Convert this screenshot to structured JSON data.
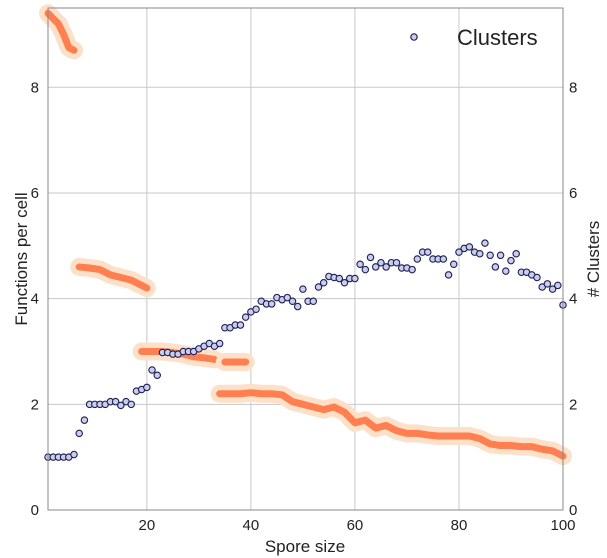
{
  "chart_data": {
    "type": "scatter",
    "xlabel": "Spore size",
    "ylabel_left": "Functions per cell",
    "ylabel_right": "# Clusters",
    "xlim": [
      1,
      100
    ],
    "ylim": [
      0,
      9.5
    ],
    "xticks": [
      20,
      40,
      60,
      80,
      100
    ],
    "yticks": [
      0,
      2,
      4,
      6,
      8
    ],
    "grid": true,
    "legend": {
      "position": "top-right",
      "label": "Clusters"
    },
    "colors": {
      "band_outer": "#fde0c8",
      "band_inner": "#ff7f50",
      "marker_fill": "#c9cdee",
      "marker_edge": "#1f1f4e",
      "grid": "#c8c8c8",
      "axis": "#888888",
      "text": "#222222"
    },
    "clusters": {
      "x": [
        1,
        2,
        3,
        4,
        5,
        6,
        7,
        8,
        9,
        10,
        11,
        12,
        13,
        14,
        15,
        16,
        17,
        18,
        19,
        20,
        21,
        22,
        23,
        24,
        25,
        26,
        27,
        28,
        29,
        30,
        31,
        32,
        33,
        34,
        35,
        36,
        37,
        38,
        39,
        40,
        41,
        42,
        43,
        44,
        45,
        46,
        47,
        48,
        49,
        50,
        51,
        52,
        53,
        54,
        55,
        56,
        57,
        58,
        59,
        60,
        61,
        62,
        63,
        64,
        65,
        66,
        67,
        68,
        69,
        70,
        71,
        72,
        73,
        74,
        75,
        76,
        77,
        78,
        79,
        80,
        81,
        82,
        83,
        84,
        85,
        86,
        87,
        88,
        89,
        90,
        91,
        92,
        93,
        94,
        95,
        96,
        97,
        98,
        99,
        100
      ],
      "y": [
        1.0,
        1.0,
        1.0,
        1.0,
        1.0,
        1.05,
        1.45,
        1.7,
        2.0,
        2.0,
        2.0,
        2.0,
        2.05,
        2.05,
        1.98,
        2.05,
        2.0,
        2.25,
        2.28,
        2.32,
        2.65,
        2.55,
        2.98,
        2.98,
        2.95,
        2.95,
        3.0,
        3.0,
        3.0,
        3.05,
        3.1,
        3.15,
        3.1,
        3.15,
        3.45,
        3.45,
        3.5,
        3.5,
        3.65,
        3.75,
        3.8,
        3.95,
        3.9,
        3.9,
        4.02,
        3.98,
        4.02,
        3.95,
        3.85,
        4.18,
        3.95,
        3.95,
        4.22,
        4.3,
        4.42,
        4.4,
        4.38,
        4.3,
        4.38,
        4.38,
        4.65,
        4.55,
        4.78,
        4.6,
        4.68,
        4.6,
        4.68,
        4.68,
        4.58,
        4.58,
        4.55,
        4.75,
        4.88,
        4.88,
        4.75,
        4.75,
        4.75,
        4.45,
        4.65,
        4.88,
        4.95,
        4.98,
        4.88,
        4.85,
        5.05,
        4.82,
        4.6,
        4.82,
        4.52,
        4.72,
        4.85,
        4.5,
        4.5,
        4.45,
        4.4,
        4.22,
        4.28,
        4.18,
        4.25,
        3.88
      ]
    },
    "bands": [
      {
        "x": [
          1,
          2,
          3,
          4,
          5,
          6
        ],
        "y": [
          9.4,
          9.3,
          9.2,
          9.0,
          8.75,
          8.7
        ]
      },
      {
        "x": [
          7,
          9,
          11,
          13,
          15,
          17,
          19,
          20
        ],
        "y": [
          4.6,
          4.58,
          4.55,
          4.45,
          4.4,
          4.35,
          4.25,
          4.2
        ]
      },
      {
        "x": [
          19,
          21,
          23,
          25,
          27,
          29,
          31,
          33
        ],
        "y": [
          3.0,
          3.0,
          3.0,
          2.98,
          2.95,
          2.9,
          2.88,
          2.85
        ]
      },
      {
        "x": [
          35,
          37,
          39
        ],
        "y": [
          2.8,
          2.8,
          2.8
        ]
      },
      {
        "x": [
          34,
          36,
          38,
          40,
          42,
          44,
          46,
          48,
          50,
          52,
          54,
          56,
          58,
          60,
          62,
          64,
          66,
          68,
          70,
          72,
          74,
          76,
          78,
          80,
          82,
          84,
          86,
          88,
          90,
          92,
          94,
          96,
          98,
          100
        ],
        "y": [
          2.2,
          2.2,
          2.2,
          2.22,
          2.2,
          2.2,
          2.18,
          2.05,
          2.0,
          1.95,
          1.9,
          1.95,
          1.85,
          1.65,
          1.7,
          1.55,
          1.6,
          1.5,
          1.45,
          1.45,
          1.42,
          1.4,
          1.4,
          1.4,
          1.4,
          1.35,
          1.25,
          1.22,
          1.22,
          1.2,
          1.2,
          1.15,
          1.12,
          1.02
        ]
      }
    ]
  }
}
